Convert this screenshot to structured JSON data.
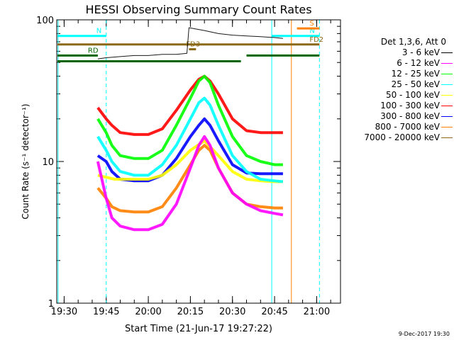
{
  "chart_data": {
    "type": "line",
    "title": "HESSI Observing Summary Count Rates",
    "xlabel": "Start Time (21-Jun-17 19:27:22)",
    "ylabel": "Count Rate (s⁻¹ detector⁻¹)",
    "yscale": "log",
    "ylim": [
      1,
      100
    ],
    "xlim": [
      "19:27:22",
      "21:08:30"
    ],
    "x_ticks": [
      "19:30",
      "19:45",
      "20:00",
      "20:15",
      "20:30",
      "20:45",
      "21:00"
    ],
    "y_ticks": [
      "1",
      "10",
      "100"
    ],
    "legend_placement": "right",
    "legend_header": "Det 1,3,6, Att 0",
    "series": [
      {
        "name": "3 - 6 keV",
        "color": "#000000",
        "x": [
          "19:42:00",
          "19:45:00",
          "19:50:00",
          "19:55:00",
          "20:00:00",
          "20:05:00",
          "20:10:00",
          "20:13:45",
          "20:14:30",
          "20:20:00",
          "20:25:00",
          "20:30:00",
          "20:35:00",
          "20:40:00",
          "20:45:00",
          "20:48:00"
        ],
        "y": [
          53,
          54,
          55,
          56,
          56,
          57,
          57,
          58,
          88,
          84,
          80,
          78,
          77,
          76,
          75,
          74
        ]
      },
      {
        "name": "6 - 12 keV",
        "color": "#ff00ff",
        "x": [
          "19:42:00",
          "19:45:00",
          "19:47:00",
          "19:50:00",
          "19:55:00",
          "20:00:00",
          "20:05:00",
          "20:10:00",
          "20:15:00",
          "20:18:00",
          "20:20:00",
          "20:22:00",
          "20:25:00",
          "20:30:00",
          "20:35:00",
          "20:40:00",
          "20:45:00",
          "20:48:00"
        ],
        "y": [
          10,
          5.5,
          4,
          3.5,
          3.3,
          3.3,
          3.6,
          5,
          9,
          13,
          15,
          13,
          9,
          6,
          5,
          4.5,
          4.3,
          4.2
        ]
      },
      {
        "name": "12 - 25 keV",
        "color": "#00ff00",
        "x": [
          "19:42:00",
          "19:45:00",
          "19:47:00",
          "19:50:00",
          "19:55:00",
          "20:00:00",
          "20:05:00",
          "20:10:00",
          "20:15:00",
          "20:18:00",
          "20:20:00",
          "20:22:00",
          "20:25:00",
          "20:30:00",
          "20:35:00",
          "20:40:00",
          "20:45:00",
          "20:48:00"
        ],
        "y": [
          20,
          16,
          13,
          11,
          10.5,
          10.5,
          12,
          18,
          28,
          37,
          40,
          36,
          25,
          15,
          11,
          10,
          9.5,
          9.5
        ]
      },
      {
        "name": "25 - 50 keV",
        "color": "#00ffff",
        "x": [
          "19:42:00",
          "19:45:00",
          "19:47:00",
          "19:50:00",
          "19:55:00",
          "20:00:00",
          "20:05:00",
          "20:10:00",
          "20:15:00",
          "20:18:00",
          "20:20:00",
          "20:22:00",
          "20:25:00",
          "20:30:00",
          "20:35:00",
          "20:40:00",
          "20:45:00",
          "20:48:00"
        ],
        "y": [
          15,
          12,
          10,
          8.5,
          8,
          8,
          9.5,
          13,
          20,
          26,
          28,
          25,
          18,
          11,
          8.5,
          7.5,
          7.3,
          7.2
        ]
      },
      {
        "name": "50 - 100 keV",
        "color": "#ffff00",
        "x": [
          "19:42:00",
          "19:48:00",
          "19:55:00",
          "20:00:00",
          "20:05:00",
          "20:10:00",
          "20:15:00",
          "20:20:00",
          "20:25:00",
          "20:30:00",
          "20:35:00",
          "20:40:00",
          "20:45:00",
          "20:48:00"
        ],
        "y": [
          8,
          7.5,
          7.5,
          7.5,
          8,
          9.5,
          12,
          14,
          11,
          8.5,
          7.5,
          7.3,
          7.2,
          7.2
        ]
      },
      {
        "name": "100 - 300 keV",
        "color": "#ff0000",
        "x": [
          "19:42:00",
          "19:45:00",
          "19:47:00",
          "19:50:00",
          "19:55:00",
          "20:00:00",
          "20:05:00",
          "20:10:00",
          "20:15:00",
          "20:18:00",
          "20:20:00",
          "20:22:00",
          "20:25:00",
          "20:30:00",
          "20:35:00",
          "20:40:00",
          "20:45:00",
          "20:48:00"
        ],
        "y": [
          24,
          20,
          18,
          16,
          15.5,
          15.5,
          17,
          23,
          32,
          38,
          40,
          37,
          30,
          20,
          16.5,
          16,
          16,
          16
        ]
      },
      {
        "name": "300 - 800 keV",
        "color": "#0000ff",
        "x": [
          "19:42:00",
          "19:45:00",
          "19:47:00",
          "19:50:00",
          "19:55:00",
          "20:00:00",
          "20:05:00",
          "20:10:00",
          "20:15:00",
          "20:18:00",
          "20:20:00",
          "20:22:00",
          "20:25:00",
          "20:30:00",
          "20:35:00",
          "20:40:00",
          "20:45:00",
          "20:48:00"
        ],
        "y": [
          11,
          10,
          8.5,
          7.5,
          7.3,
          7.3,
          8,
          10.5,
          15,
          18,
          20,
          18,
          14,
          9.5,
          8.3,
          8.2,
          8.2,
          8.2
        ]
      },
      {
        "name": "800 - 7000 keV",
        "color": "#ff8000",
        "x": [
          "19:42:00",
          "19:45:00",
          "19:47:00",
          "19:50:00",
          "19:55:00",
          "20:00:00",
          "20:05:00",
          "20:10:00",
          "20:15:00",
          "20:18:00",
          "20:20:00",
          "20:22:00",
          "20:25:00",
          "20:30:00",
          "20:35:00",
          "20:40:00",
          "20:45:00",
          "20:48:00"
        ],
        "y": [
          6.5,
          5.5,
          4.8,
          4.5,
          4.4,
          4.4,
          4.8,
          6.5,
          9.5,
          12,
          13,
          12,
          9,
          6,
          5,
          4.8,
          4.7,
          4.7
        ]
      },
      {
        "name": "7000 - 20000 keV",
        "color": "#8b6914",
        "x": [],
        "y": []
      }
    ],
    "flags": [
      {
        "label": "N",
        "color": "#00ffff",
        "y": 77,
        "x_start": "19:27:22",
        "x_end": "19:45:00"
      },
      {
        "label": "N",
        "color": "#00ffff",
        "y": 77,
        "x_start": "20:44:00",
        "x_end": "21:01:00"
      },
      {
        "label": "S",
        "color": "#ff8000",
        "y": 87,
        "x_start": "20:53:00",
        "x_end": "21:01:00"
      },
      {
        "label": "FD2",
        "color": "#8b6914",
        "y": 67,
        "x_start": "19:27:22",
        "x_end": "21:01:00"
      },
      {
        "label": "FD3",
        "color": "#8b6914",
        "y": 62,
        "x_start": "20:14:30",
        "x_end": "20:17:00"
      },
      {
        "label": "RD",
        "color": "#006400",
        "y": 56,
        "x_start": "19:27:22",
        "x_end": "19:42:00"
      },
      {
        "label": "",
        "color": "#006400",
        "y": 51,
        "x_start": "19:27:22",
        "x_end": "20:33:00"
      },
      {
        "label": "",
        "color": "#006400",
        "y": 56,
        "x_start": "20:35:00",
        "x_end": "21:01:00"
      }
    ],
    "vertical_lines": [
      {
        "x": "19:27:50",
        "color": "#00ffff",
        "style": "solid"
      },
      {
        "x": "19:45:00",
        "color": "#00ffff",
        "style": "dashed"
      },
      {
        "x": "20:44:00",
        "color": "#00ffff",
        "style": "solid"
      },
      {
        "x": "20:51:00",
        "color": "#ff8000",
        "style": "solid"
      },
      {
        "x": "21:01:00",
        "color": "#00ffff",
        "style": "dashed"
      }
    ]
  },
  "footer_date": "9-Dec-2017 19:30"
}
